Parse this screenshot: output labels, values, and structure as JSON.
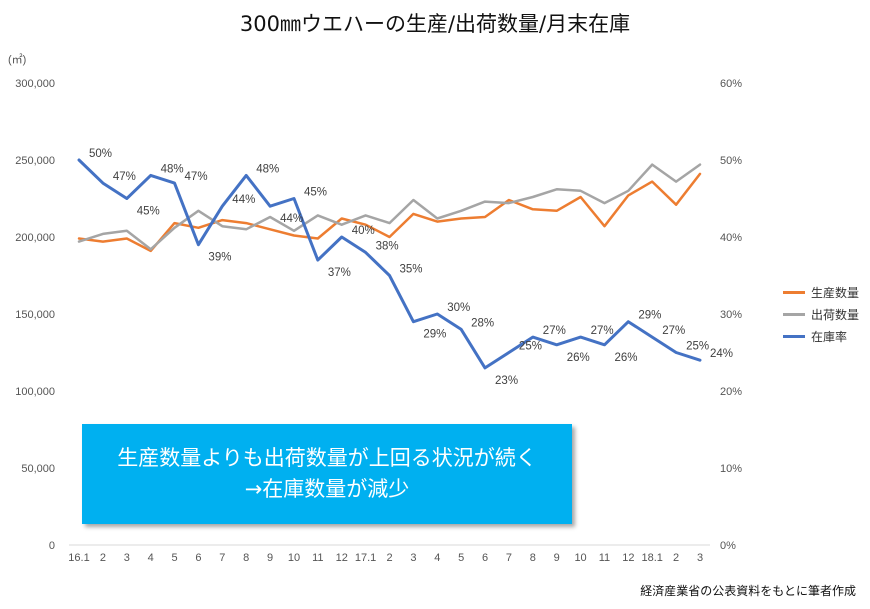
{
  "chart_data": {
    "type": "line",
    "title": "300㎜ウエハーの生産/出荷数量/月末在庫",
    "ylabel": "(㎡)",
    "ylim": [
      0,
      300000
    ],
    "y2lim": [
      0,
      0.6
    ],
    "yticks": [
      "0",
      "50,000",
      "100,000",
      "150,000",
      "200,000",
      "250,000",
      "300,000"
    ],
    "y2ticks": [
      "0%",
      "10%",
      "20%",
      "30%",
      "40%",
      "50%",
      "60%"
    ],
    "categories": [
      "16.1",
      "2",
      "3",
      "4",
      "5",
      "6",
      "7",
      "8",
      "9",
      "10",
      "11",
      "12",
      "17.1",
      "2",
      "3",
      "4",
      "5",
      "6",
      "7",
      "8",
      "9",
      "10",
      "11",
      "12",
      "18.1",
      "2",
      "3"
    ],
    "series": [
      {
        "name": "生産数量",
        "axis": "left",
        "color": "#ed7d31",
        "values": [
          199000,
          197000,
          199000,
          191000,
          209000,
          206000,
          211000,
          209000,
          205000,
          201000,
          199000,
          212000,
          208000,
          200000,
          215000,
          210000,
          212000,
          213000,
          224000,
          218000,
          217000,
          226000,
          207000,
          227000,
          236000,
          221000,
          241000
        ]
      },
      {
        "name": "出荷数量",
        "axis": "left",
        "color": "#a5a5a5",
        "values": [
          197000,
          202000,
          204000,
          192000,
          206000,
          217000,
          207000,
          205000,
          213000,
          204000,
          214000,
          208000,
          214000,
          209000,
          224000,
          212000,
          217000,
          223000,
          222000,
          226000,
          231000,
          230000,
          222000,
          230000,
          247000,
          236000,
          247000
        ]
      },
      {
        "name": "在庫率",
        "axis": "right",
        "color": "#4472c4",
        "values": [
          0.5,
          0.47,
          0.45,
          0.48,
          0.47,
          0.39,
          0.44,
          0.48,
          0.44,
          0.45,
          0.37,
          0.4,
          0.38,
          0.35,
          0.29,
          0.3,
          0.28,
          0.23,
          0.25,
          0.27,
          0.26,
          0.27,
          0.26,
          0.29,
          0.27,
          0.25,
          0.24
        ],
        "labels": [
          "50%",
          "47%",
          "45%",
          "48%",
          "47%",
          "39%",
          "44%",
          "48%",
          "44%",
          "45%",
          "37%",
          "40%",
          "38%",
          "35%",
          "29%",
          "30%",
          "28%",
          "23%",
          "25%",
          "27%",
          "26%",
          "27%",
          "26%",
          "29%",
          "27%",
          "25%",
          "24%"
        ]
      }
    ],
    "legend": "right"
  },
  "callout": {
    "line1": "生産数量よりも出荷数量が上回る状況が続く",
    "line2": "→在庫数量が減少"
  },
  "source_note": "経済産業省の公表資料をもとに筆者作成"
}
